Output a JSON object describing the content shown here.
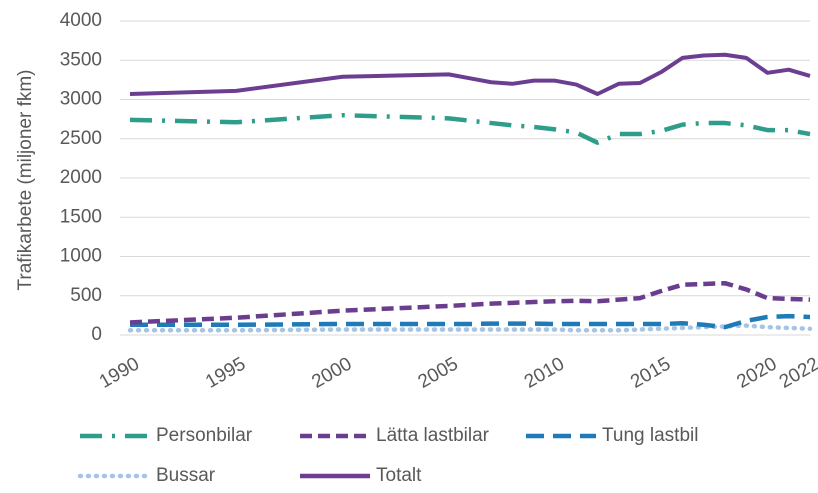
{
  "chart_data": {
    "type": "line",
    "ylabel": "Trafikarbete (miljoner fkm)",
    "x": [
      1990,
      1995,
      2000,
      2005,
      2006,
      2007,
      2008,
      2009,
      2010,
      2011,
      2012,
      2013,
      2014,
      2015,
      2016,
      2017,
      2018,
      2019,
      2020,
      2021,
      2022
    ],
    "series": [
      {
        "name": "Personbilar",
        "color": "#2e9e8a",
        "dash": "22 10 3 10",
        "values": [
          2740,
          2710,
          2800,
          2760,
          2730,
          2700,
          2670,
          2650,
          2620,
          2580,
          2450,
          2560,
          2560,
          2600,
          2680,
          2700,
          2700,
          2670,
          2610,
          2610,
          2560
        ]
      },
      {
        "name": "Lätta lastbilar",
        "color": "#6a3d8f",
        "dash": "12 6",
        "values": [
          160,
          220,
          310,
          370,
          385,
          400,
          410,
          420,
          430,
          435,
          430,
          450,
          470,
          560,
          640,
          650,
          660,
          580,
          470,
          460,
          450
        ]
      },
      {
        "name": "Tung lastbil",
        "color": "#1f7ab8",
        "dash": "18 9",
        "values": [
          130,
          130,
          140,
          140,
          140,
          145,
          145,
          145,
          140,
          140,
          140,
          140,
          140,
          140,
          150,
          130,
          100,
          180,
          230,
          240,
          230
        ]
      },
      {
        "name": "Bussar",
        "color": "#a8c4e4",
        "dash": "1 7",
        "values": [
          60,
          60,
          70,
          70,
          70,
          70,
          70,
          70,
          70,
          60,
          60,
          60,
          70,
          80,
          90,
          100,
          110,
          120,
          100,
          90,
          80
        ]
      },
      {
        "name": "Totalt",
        "color": "#6c3e91",
        "dash": "none",
        "values": [
          3070,
          3110,
          3290,
          3320,
          3270,
          3220,
          3200,
          3240,
          3240,
          3190,
          3070,
          3200,
          3210,
          3350,
          3530,
          3560,
          3570,
          3530,
          3340,
          3380,
          3300
        ]
      }
    ],
    "xlim": [
      1990,
      2022
    ],
    "xticks": [
      1990,
      1995,
      2000,
      2005,
      2010,
      2015,
      2020,
      2022
    ],
    "ylim": [
      0,
      4000
    ],
    "yticks": [
      0,
      500,
      1000,
      1500,
      2000,
      2500,
      3000,
      3500,
      4000
    ],
    "grid": true,
    "legend": "bottom"
  }
}
